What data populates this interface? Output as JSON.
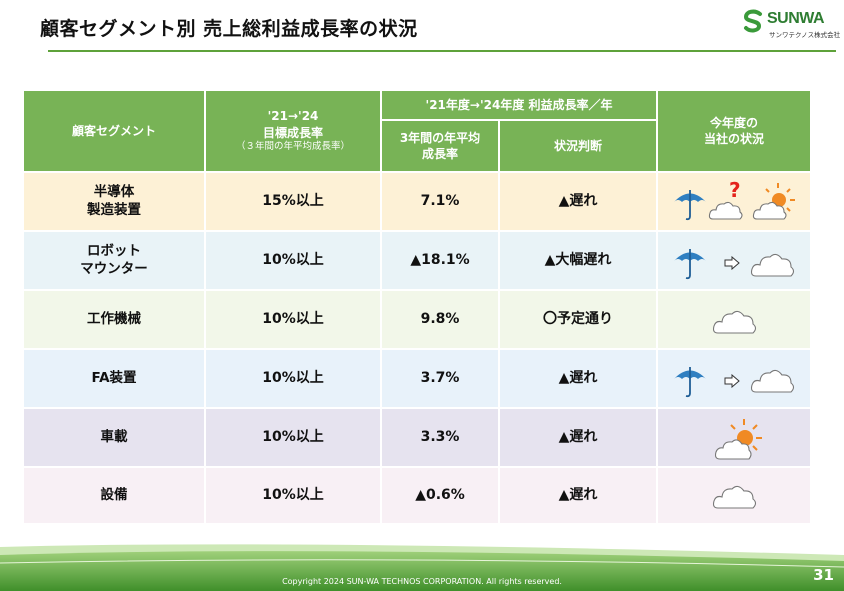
{
  "title": "顧客セグメント別 売上総利益成長率の状況",
  "logo": {
    "word": "SUNWA",
    "sub": "サンワテクノス株式会社"
  },
  "table": {
    "headers": {
      "segment": "顧客セグメント",
      "target_line1": "'21→'24",
      "target_line2": "目標成長率",
      "target_note": "（３年間の年平均成長率）",
      "actual_group": "'21年度→'24年度 利益成長率／年",
      "actual_avg_line1": "3年間の年平均",
      "actual_avg_line2": "成長率",
      "judgment": "状況判断",
      "status_line1": "今年度の",
      "status_line2": "当社の状況"
    },
    "rows": [
      {
        "seg1": "半導体",
        "seg2": "製造装置",
        "target": "15%以上",
        "actual": "7.1%",
        "judgment": "▲遅れ",
        "weather": [
          "umbrella-icon",
          "cloud-icon",
          "question-mark-icon",
          "sun-behind-cloud-icon"
        ],
        "question": "?"
      },
      {
        "seg1": "ロボット",
        "seg2": "マウンター",
        "target": "10%以上",
        "actual": "▲18.1%",
        "judgment": "▲大幅遅れ",
        "weather": [
          "umbrella-icon",
          "arrow-right-icon",
          "cloud-icon"
        ]
      },
      {
        "seg1": "工作機械",
        "seg2": "",
        "target": "10%以上",
        "actual": "9.8%",
        "judgment": "〇予定通り",
        "weather": [
          "cloud-icon"
        ]
      },
      {
        "seg1": "FA装置",
        "seg2": "",
        "target": "10%以上",
        "actual": "3.7%",
        "judgment": "▲遅れ",
        "weather": [
          "umbrella-icon",
          "arrow-right-icon",
          "cloud-icon"
        ]
      },
      {
        "seg1": "車載",
        "seg2": "",
        "target": "10%以上",
        "actual": "3.3%",
        "judgment": "▲遅れ",
        "weather": [
          "sun-behind-cloud-icon"
        ]
      },
      {
        "seg1": "設備",
        "seg2": "",
        "target": "10%以上",
        "actual": "▲0.6%",
        "judgment": "▲遅れ",
        "weather": [
          "cloud-icon"
        ]
      }
    ]
  },
  "footer": {
    "copyright": "Copyright 2024 SUN-WA TECHNOS CORPORATION. All rights reserved.",
    "page": "31"
  },
  "colors": {
    "header_green": "#78b356",
    "umbrella_blue": "#2f7fc1",
    "sun_orange": "#f08a24",
    "question_red": "#e4231b",
    "brand_green": "#2e7d32"
  }
}
